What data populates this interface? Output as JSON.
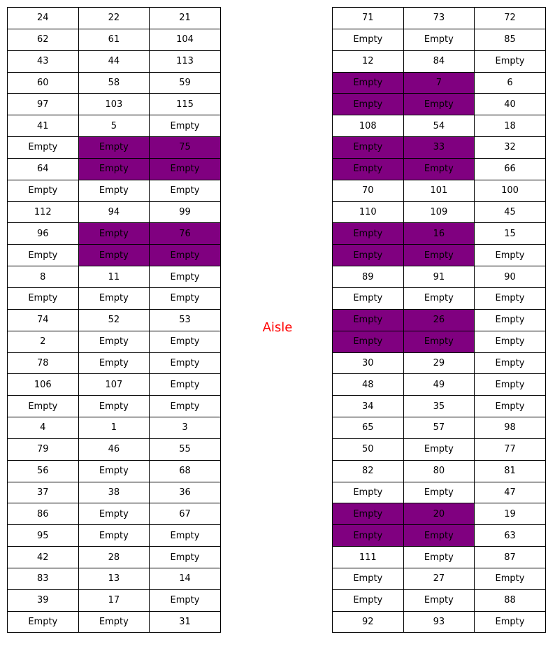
{
  "aisle_label": "Aisle",
  "colors": {
    "highlight": "#800080",
    "border": "#000000",
    "aisle_text": "#ff0000"
  },
  "left_block": [
    [
      "24",
      "22",
      "21"
    ],
    [
      "62",
      "61",
      "104"
    ],
    [
      "43",
      "44",
      "113"
    ],
    [
      "60",
      "58",
      "59"
    ],
    [
      "97",
      "103",
      "115"
    ],
    [
      "41",
      "5",
      "Empty"
    ],
    [
      "Empty",
      "Empty",
      "75"
    ],
    [
      "64",
      "Empty",
      "Empty"
    ],
    [
      "Empty",
      "Empty",
      "Empty"
    ],
    [
      "112",
      "94",
      "99"
    ],
    [
      "96",
      "Empty",
      "76"
    ],
    [
      "Empty",
      "Empty",
      "Empty"
    ],
    [
      "8",
      "11",
      "Empty"
    ],
    [
      "Empty",
      "Empty",
      "Empty"
    ],
    [
      "74",
      "52",
      "53"
    ],
    [
      "2",
      "Empty",
      "Empty"
    ],
    [
      "78",
      "Empty",
      "Empty"
    ],
    [
      "106",
      "107",
      "Empty"
    ],
    [
      "Empty",
      "Empty",
      "Empty"
    ],
    [
      "4",
      "1",
      "3"
    ],
    [
      "79",
      "46",
      "55"
    ],
    [
      "56",
      "Empty",
      "68"
    ],
    [
      "37",
      "38",
      "36"
    ],
    [
      "86",
      "Empty",
      "67"
    ],
    [
      "95",
      "Empty",
      "Empty"
    ],
    [
      "42",
      "28",
      "Empty"
    ],
    [
      "83",
      "13",
      "14"
    ],
    [
      "39",
      "17",
      "Empty"
    ],
    [
      "Empty",
      "Empty",
      "31"
    ]
  ],
  "left_highlight": [
    [
      6,
      1
    ],
    [
      6,
      2
    ],
    [
      7,
      1
    ],
    [
      7,
      2
    ],
    [
      10,
      1
    ],
    [
      10,
      2
    ],
    [
      11,
      1
    ],
    [
      11,
      2
    ]
  ],
  "right_block": [
    [
      "71",
      "73",
      "72"
    ],
    [
      "Empty",
      "Empty",
      "85"
    ],
    [
      "12",
      "84",
      "Empty"
    ],
    [
      "Empty",
      "7",
      "6"
    ],
    [
      "Empty",
      "Empty",
      "40"
    ],
    [
      "108",
      "54",
      "18"
    ],
    [
      "Empty",
      "33",
      "32"
    ],
    [
      "Empty",
      "Empty",
      "66"
    ],
    [
      "70",
      "101",
      "100"
    ],
    [
      "110",
      "109",
      "45"
    ],
    [
      "Empty",
      "16",
      "15"
    ],
    [
      "Empty",
      "Empty",
      "Empty"
    ],
    [
      "89",
      "91",
      "90"
    ],
    [
      "Empty",
      "Empty",
      "Empty"
    ],
    [
      "Empty",
      "26",
      "Empty"
    ],
    [
      "Empty",
      "Empty",
      "Empty"
    ],
    [
      "30",
      "29",
      "Empty"
    ],
    [
      "48",
      "49",
      "Empty"
    ],
    [
      "34",
      "35",
      "Empty"
    ],
    [
      "65",
      "57",
      "98"
    ],
    [
      "50",
      "Empty",
      "77"
    ],
    [
      "82",
      "80",
      "81"
    ],
    [
      "Empty",
      "Empty",
      "47"
    ],
    [
      "Empty",
      "20",
      "19"
    ],
    [
      "Empty",
      "Empty",
      "63"
    ],
    [
      "111",
      "Empty",
      "87"
    ],
    [
      "Empty",
      "27",
      "Empty"
    ],
    [
      "Empty",
      "Empty",
      "88"
    ],
    [
      "92",
      "93",
      "Empty"
    ]
  ],
  "right_highlight": [
    [
      3,
      0
    ],
    [
      3,
      1
    ],
    [
      4,
      0
    ],
    [
      4,
      1
    ],
    [
      6,
      0
    ],
    [
      6,
      1
    ],
    [
      7,
      0
    ],
    [
      7,
      1
    ],
    [
      10,
      0
    ],
    [
      10,
      1
    ],
    [
      11,
      0
    ],
    [
      11,
      1
    ],
    [
      14,
      0
    ],
    [
      14,
      1
    ],
    [
      15,
      0
    ],
    [
      15,
      1
    ],
    [
      23,
      0
    ],
    [
      23,
      1
    ],
    [
      24,
      0
    ],
    [
      24,
      1
    ]
  ]
}
